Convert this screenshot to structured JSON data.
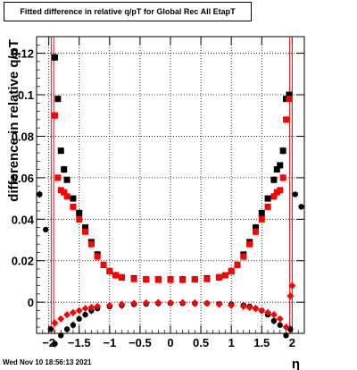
{
  "title": "Fitted difference in relative q/pT for Global Rec All EtapT",
  "timestamp": "Wed Nov 10 18:56:13 2021",
  "colors": {
    "series_black": "#000000",
    "series_red": "#ff0000",
    "limit_lines": "#ff0000",
    "grid": "#000000"
  },
  "chart_data": {
    "type": "scatter",
    "title": "Fitted difference in relative q/pT for Global Rec All EtapT",
    "xlabel": "η",
    "ylabel": "difference in relative q/pT",
    "xlim": [
      -2.2,
      2.2
    ],
    "ylim": [
      -0.015,
      0.128
    ],
    "xticks": [
      -2,
      -1.5,
      -1,
      -0.5,
      0,
      0.5,
      1,
      1.5,
      2
    ],
    "xtick_labels": [
      "−2",
      "−1.5",
      "−1",
      "−0.5",
      "0",
      "0.5",
      "1",
      "1.5",
      "2"
    ],
    "yticks": [
      0,
      0.02,
      0.04,
      0.06,
      0.08,
      0.1,
      0.12
    ],
    "ytick_labels": [
      "0",
      "0.02",
      "0.04",
      "0.06",
      "0.08",
      "0.1",
      "0.12"
    ],
    "grid": true,
    "vertical_lines_x": [
      -1.96,
      -1.92,
      1.96,
      2.0
    ],
    "series": [
      {
        "marker": "square",
        "color": "#000000",
        "x": [
          -1.9,
          -1.85,
          -1.8,
          -1.75,
          -1.7,
          -1.6,
          -1.5,
          -1.4,
          -1.3,
          -1.2,
          -1.1,
          -1.0,
          -0.9,
          -0.8,
          -0.6,
          -0.4,
          -0.2,
          0.0,
          0.2,
          0.4,
          0.6,
          0.8,
          0.9,
          1.0,
          1.1,
          1.2,
          1.3,
          1.4,
          1.5,
          1.6,
          1.7,
          1.75,
          1.8,
          1.85,
          1.9,
          1.95
        ],
        "y": [
          0.118,
          0.098,
          0.073,
          0.064,
          0.059,
          0.05,
          0.043,
          0.036,
          0.029,
          0.023,
          0.018,
          0.015,
          0.013,
          0.012,
          0.0115,
          0.011,
          0.011,
          0.011,
          0.011,
          0.011,
          0.0115,
          0.012,
          0.013,
          0.015,
          0.018,
          0.023,
          0.029,
          0.036,
          0.043,
          0.05,
          0.059,
          0.064,
          0.066,
          0.073,
          0.098,
          0.1
        ]
      },
      {
        "marker": "square",
        "color": "#ff0000",
        "x": [
          -1.9,
          -1.85,
          -1.8,
          -1.75,
          -1.7,
          -1.6,
          -1.5,
          -1.4,
          -1.3,
          -1.2,
          -1.1,
          -1.0,
          -0.9,
          -0.8,
          -0.6,
          -0.4,
          -0.2,
          0.0,
          0.2,
          0.4,
          0.6,
          0.8,
          0.9,
          1.0,
          1.1,
          1.2,
          1.3,
          1.4,
          1.5,
          1.6,
          1.7,
          1.75,
          1.8,
          1.85,
          1.9,
          1.95
        ],
        "y": [
          0.09,
          0.06,
          0.054,
          0.053,
          0.051,
          0.046,
          0.04,
          0.034,
          0.028,
          0.022,
          0.018,
          0.015,
          0.013,
          0.012,
          0.0112,
          0.011,
          0.0108,
          0.0108,
          0.0108,
          0.011,
          0.0112,
          0.012,
          0.013,
          0.015,
          0.018,
          0.022,
          0.028,
          0.034,
          0.04,
          0.046,
          0.051,
          0.053,
          0.054,
          0.06,
          0.088,
          0.098
        ]
      },
      {
        "marker": "circle",
        "color": "#000000",
        "x": [
          -2.15,
          -2.05,
          -1.97,
          -1.9,
          -1.8,
          -1.7,
          -1.6,
          -1.5,
          -1.4,
          -1.3,
          -1.2,
          -1.0,
          -0.8,
          -0.6,
          -0.4,
          -0.2,
          0.0,
          0.2,
          0.4,
          0.6,
          0.8,
          1.0,
          1.2,
          1.3,
          1.4,
          1.5,
          1.6,
          1.7,
          1.8,
          1.9,
          1.97,
          2.05,
          2.15
        ],
        "y": [
          0.052,
          0.035,
          -0.013,
          -0.02,
          -0.016,
          -0.013,
          -0.011,
          -0.008,
          -0.006,
          -0.004,
          -0.003,
          -0.002,
          -0.0015,
          -0.001,
          -0.0008,
          -0.0005,
          -0.0005,
          -0.0005,
          -0.0005,
          -0.0005,
          -0.0008,
          -0.001,
          -0.0015,
          -0.002,
          -0.003,
          -0.004,
          -0.006,
          -0.009,
          -0.011,
          -0.016,
          -0.013,
          0.052,
          0.046
        ]
      },
      {
        "marker": "diamond",
        "color": "#ff0000",
        "x": [
          -1.9,
          -1.8,
          -1.7,
          -1.6,
          -1.5,
          -1.4,
          -1.3,
          -1.2,
          -1.0,
          -0.8,
          -0.6,
          -0.4,
          -0.2,
          0.0,
          0.2,
          0.4,
          0.6,
          0.8,
          1.0,
          1.2,
          1.3,
          1.4,
          1.5,
          1.6,
          1.7,
          1.8,
          1.9,
          1.97,
          2.0
        ],
        "y": [
          -0.01,
          -0.008,
          -0.006,
          -0.005,
          -0.004,
          -0.003,
          -0.0025,
          -0.002,
          -0.0015,
          -0.001,
          -0.0005,
          -0.0003,
          -0.0002,
          -0.0002,
          -0.0002,
          -0.0003,
          -0.0005,
          -0.001,
          -0.0015,
          -0.002,
          -0.0025,
          -0.003,
          -0.004,
          -0.005,
          -0.006,
          -0.008,
          -0.012,
          0.003,
          0.008
        ]
      }
    ]
  }
}
